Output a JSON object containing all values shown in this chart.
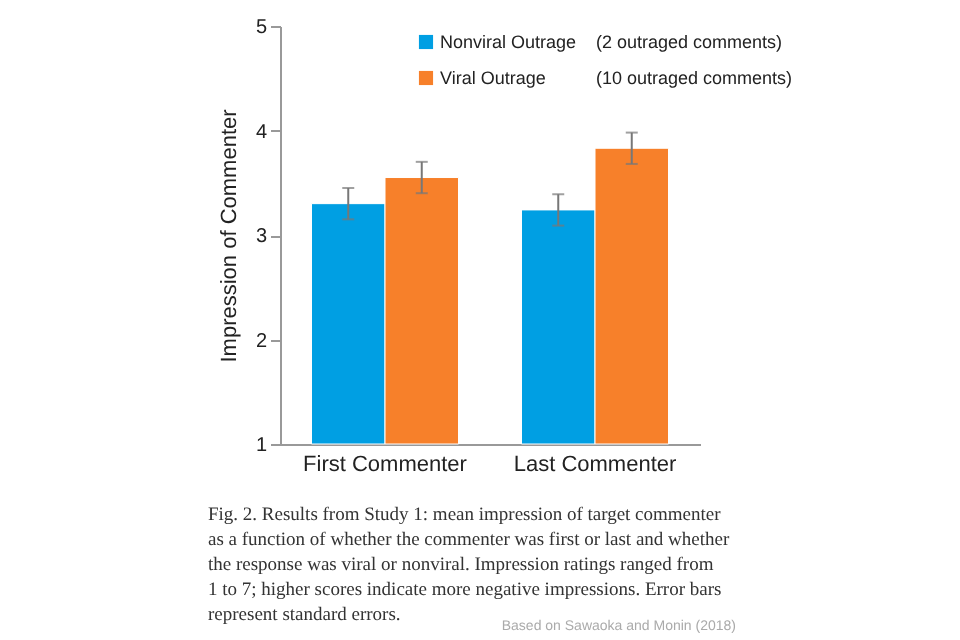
{
  "chart_data": {
    "type": "bar",
    "ylabel": "Impression of Commenter",
    "categories": [
      "First Commenter",
      "Last Commenter"
    ],
    "series": [
      {
        "name": "Nonviral Outrage",
        "color": "#009fe3",
        "values": [
          3.3,
          3.24
        ],
        "errors": [
          0.15,
          0.15
        ]
      },
      {
        "name": "Viral Outrage",
        "color": "#f7802a",
        "values": [
          3.55,
          3.83
        ],
        "errors": [
          0.15,
          0.15
        ]
      }
    ],
    "ylim": [
      1,
      5
    ],
    "yticks": [
      1,
      2,
      3,
      4,
      5
    ],
    "grid": false,
    "legend": "top right",
    "annotations": [
      "(2 outraged comments)",
      "(10 outraged comments)",
      "Fig. 2.  Results from Study 1: mean impression of target commenter\nas a function of whether the commenter was first or last and whether\nthe response was viral or nonviral. Impression ratings ranged from\n1 to 7; higher scores indicate more negative impressions. Error bars\nrepresent standard errors.",
      "Based on Sawaoka and Monin (2018)"
    ]
  }
}
